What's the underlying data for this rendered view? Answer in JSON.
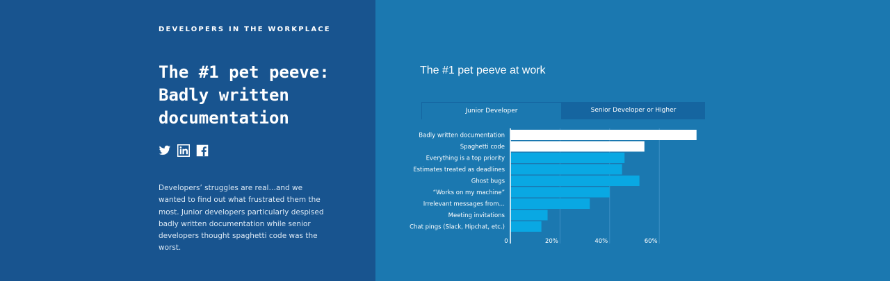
{
  "eyebrow": "DEVELOPERS IN THE WORKPLACE",
  "headline": "The #1 pet peeve: Badly written documentation",
  "social": [
    {
      "icon": "twitter-icon"
    },
    {
      "icon": "linkedin-icon"
    },
    {
      "icon": "facebook-icon"
    }
  ],
  "body_text": "Developers’ struggles are real…and we wanted to find out what frustrated them the most. Junior developers particularly despised badly written documentation while senior developers thought spaghetti code was the worst.",
  "chart_title": "The #1 pet peeve at work",
  "tabs": {
    "junior": "Junior Developer",
    "senior": "Senior Developer or Higher",
    "active": "junior"
  },
  "colors": {
    "left_bg": "#18548f",
    "right_bg": "#1b78b0",
    "bar_highlight": "#ffffff",
    "bar_default": "#09a8e3"
  },
  "chart_data": {
    "type": "bar",
    "orientation": "horizontal",
    "title": "The #1 pet peeve at work",
    "categories": [
      "Badly written documentation",
      "Spaghetti code",
      "Everything is a top priority",
      "Estimates treated as deadlines",
      "Ghost bugs",
      "“Works on my machine”",
      "Irrelevant messages from…",
      "Meeting invitations",
      "Chat pings (Slack, Hipchat, etc.)"
    ],
    "values": [
      75,
      54,
      46,
      45,
      52,
      40,
      32,
      15,
      12.5
    ],
    "highlighted": [
      true,
      true,
      false,
      false,
      false,
      false,
      false,
      false,
      false
    ],
    "x_ticks": [
      "0",
      "20%",
      "40%",
      "60%"
    ],
    "x_tick_values": [
      0,
      20,
      40,
      60
    ],
    "xlim": [
      0,
      75
    ],
    "grid": true
  }
}
